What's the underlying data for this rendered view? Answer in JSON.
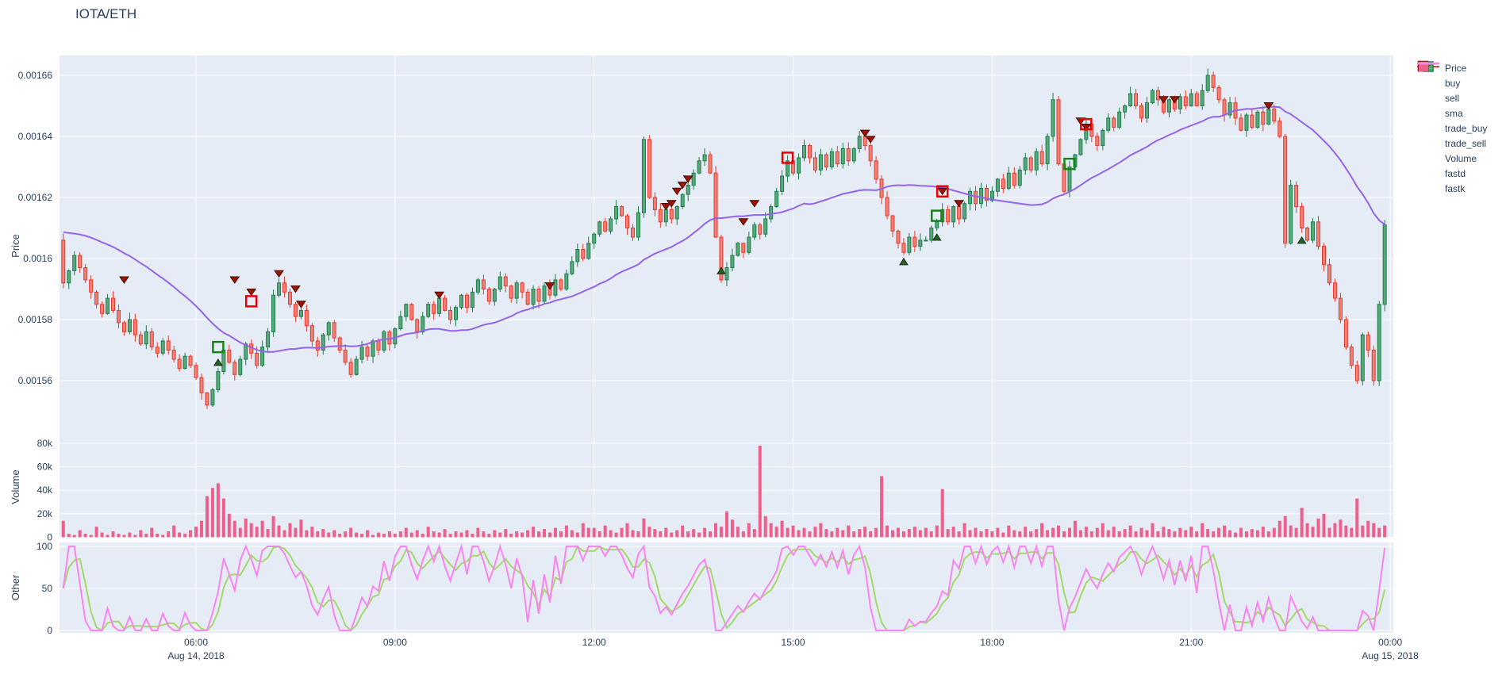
{
  "title": "IOTA/ETH",
  "legend": [
    {
      "label": "Price",
      "icon": "candlestick"
    },
    {
      "label": "buy",
      "icon": "triangle-up",
      "color": "#2a5f28"
    },
    {
      "label": "sell",
      "icon": "triangle-down",
      "color": "#9f1300"
    },
    {
      "label": "sma",
      "icon": "line",
      "color": "#9464e8"
    },
    {
      "label": "trade_buy",
      "icon": "square-open",
      "color": "#168716"
    },
    {
      "label": "trade_sell",
      "icon": "square-open",
      "color": "#e60000"
    },
    {
      "label": "Volume",
      "icon": "square-fill",
      "color": "#ee5f8b"
    },
    {
      "label": "fastd",
      "icon": "line",
      "color": "#a5d76a"
    },
    {
      "label": "fastk",
      "icon": "line",
      "color": "#f884f0"
    }
  ],
  "axes": {
    "price": {
      "label": "Price",
      "ticks": [
        {
          "t": "0.00166",
          "v": 1660
        },
        {
          "t": "0.00164",
          "v": 1640
        },
        {
          "t": "0.00162",
          "v": 1620
        },
        {
          "t": "0.0016",
          "v": 1600
        },
        {
          "t": "0.00158",
          "v": 1580
        },
        {
          "t": "0.00156",
          "v": 1560
        }
      ]
    },
    "volume": {
      "label": "Volume",
      "ticks": [
        {
          "t": "80k",
          "v": 80
        },
        {
          "t": "60k",
          "v": 60
        },
        {
          "t": "40k",
          "v": 40
        },
        {
          "t": "20k",
          "v": 20
        },
        {
          "t": "0",
          "v": 0
        }
      ]
    },
    "other": {
      "label": "Other",
      "ticks": [
        {
          "t": "100",
          "v": 100
        },
        {
          "t": "50",
          "v": 50
        },
        {
          "t": "0",
          "v": 0
        }
      ]
    },
    "x": {
      "ticks": [
        {
          "label": "06:00",
          "i": 24
        },
        {
          "label": "09:00",
          "i": 60
        },
        {
          "label": "12:00",
          "i": 96
        },
        {
          "label": "15:00",
          "i": 132
        },
        {
          "label": "18:00",
          "i": 168
        },
        {
          "label": "21:00",
          "i": 204
        },
        {
          "label": "00:00",
          "i": 240
        }
      ],
      "dates": [
        {
          "label": "Aug 14, 2018",
          "i": 24
        },
        {
          "label": "Aug 15, 2018",
          "i": 240
        }
      ]
    }
  },
  "chart_data": {
    "type": "candlestick",
    "pair": "IOTA/ETH",
    "start": "2018-08-14 04:00",
    "interval_minutes": 5,
    "price_unit": 1e-06,
    "first_open": 1606,
    "closes": [
      1592,
      1596,
      1601,
      1597,
      1593,
      1589,
      1585,
      1582,
      1587,
      1583,
      1579,
      1576,
      1580,
      1575,
      1572,
      1576,
      1571,
      1569,
      1573,
      1570,
      1567,
      1564,
      1568,
      1565,
      1561,
      1556,
      1552,
      1557,
      1563,
      1570,
      1566,
      1562,
      1567,
      1572,
      1569,
      1565,
      1571,
      1576,
      1588,
      1592,
      1589,
      1585,
      1581,
      1583,
      1578,
      1573,
      1570,
      1575,
      1579,
      1574,
      1570,
      1566,
      1562,
      1567,
      1571,
      1568,
      1573,
      1570,
      1576,
      1572,
      1577,
      1581,
      1585,
      1580,
      1576,
      1581,
      1585,
      1582,
      1587,
      1583,
      1580,
      1584,
      1588,
      1584,
      1589,
      1593,
      1590,
      1586,
      1590,
      1594,
      1591,
      1587,
      1592,
      1589,
      1585,
      1590,
      1586,
      1591,
      1588,
      1593,
      1590,
      1595,
      1599,
      1603,
      1600,
      1605,
      1608,
      1612,
      1609,
      1613,
      1617,
      1614,
      1610,
      1607,
      1615,
      1639,
      1620,
      1616,
      1612,
      1616,
      1613,
      1617,
      1621,
      1624,
      1628,
      1632,
      1634,
      1628,
      1607,
      1593,
      1597,
      1601,
      1605,
      1602,
      1607,
      1611,
      1608,
      1613,
      1617,
      1622,
      1627,
      1632,
      1628,
      1633,
      1637,
      1633,
      1629,
      1634,
      1630,
      1635,
      1631,
      1636,
      1632,
      1636,
      1640,
      1637,
      1632,
      1626,
      1620,
      1614,
      1609,
      1605,
      1602,
      1607,
      1604,
      1606,
      1606,
      1610,
      1612,
      1616,
      1612,
      1617,
      1613,
      1618,
      1622,
      1618,
      1623,
      1619,
      1622,
      1626,
      1623,
      1628,
      1624,
      1629,
      1633,
      1629,
      1635,
      1631,
      1640,
      1652,
      1631,
      1622,
      1630,
      1634,
      1639,
      1644,
      1640,
      1637,
      1642,
      1646,
      1643,
      1648,
      1650,
      1654,
      1650,
      1646,
      1651,
      1655,
      1652,
      1648,
      1652,
      1649,
      1653,
      1650,
      1654,
      1650,
      1655,
      1660,
      1656,
      1652,
      1647,
      1651,
      1646,
      1642,
      1647,
      1643,
      1648,
      1644,
      1649,
      1645,
      1640,
      1605,
      1624,
      1617,
      1610,
      1606,
      1612,
      1604,
      1598,
      1592,
      1587,
      1580,
      1571,
      1565,
      1560,
      1575,
      1570,
      1560,
      1585,
      1611
    ],
    "volumes_k": [
      14,
      3,
      2,
      6,
      3,
      2,
      9,
      4,
      2,
      5,
      3,
      2,
      4,
      2,
      6,
      3,
      8,
      3,
      2,
      5,
      10,
      4,
      3,
      6,
      9,
      14,
      35,
      42,
      46,
      33,
      20,
      14,
      8,
      16,
      12,
      9,
      14,
      7,
      18,
      10,
      6,
      12,
      8,
      15,
      6,
      9,
      5,
      7,
      4,
      6,
      3,
      5,
      8,
      4,
      3,
      6,
      2,
      4,
      3,
      5,
      3,
      5,
      8,
      4,
      6,
      3,
      9,
      5,
      4,
      7,
      3,
      5,
      4,
      6,
      3,
      8,
      5,
      3,
      6,
      4,
      7,
      3,
      5,
      4,
      6,
      9,
      5,
      7,
      4,
      8,
      5,
      10,
      6,
      4,
      12,
      8,
      8,
      5,
      10,
      6,
      4,
      8,
      12,
      6,
      5,
      16,
      9,
      7,
      5,
      8,
      4,
      6,
      10,
      5,
      7,
      4,
      8,
      5,
      12,
      9,
      22,
      15,
      9,
      5,
      12,
      7,
      78,
      18,
      12,
      9,
      14,
      8,
      10,
      6,
      8,
      5,
      9,
      12,
      7,
      5,
      8,
      6,
      10,
      5,
      7,
      9,
      5,
      8,
      52,
      10,
      6,
      8,
      5,
      7,
      9,
      6,
      8,
      5,
      10,
      41,
      7,
      9,
      5,
      12,
      6,
      8,
      5,
      7,
      5,
      8,
      4,
      10,
      6,
      5,
      9,
      5,
      7,
      12,
      6,
      8,
      10,
      5,
      8,
      14,
      6,
      9,
      5,
      8,
      12,
      6,
      9,
      5,
      7,
      10,
      5,
      8,
      6,
      12,
      5,
      9,
      7,
      5,
      8,
      6,
      9,
      5,
      12,
      7,
      5,
      8,
      10,
      6,
      4,
      8,
      5,
      7,
      6,
      9,
      5,
      8,
      14,
      18,
      10,
      8,
      25,
      12,
      9,
      16,
      20,
      8,
      12,
      15,
      10,
      8,
      33,
      10,
      14,
      12,
      8,
      10
    ],
    "sma_period": 30,
    "stochastic": {
      "fastk_period": 14,
      "fastd_period": 3
    },
    "markers": {
      "buy": [
        [
          28,
          1566
        ],
        [
          119,
          1596
        ],
        [
          152,
          1599
        ],
        [
          158,
          1607
        ],
        [
          224,
          1606
        ]
      ],
      "sell": [
        [
          11,
          1593
        ],
        [
          31,
          1593
        ],
        [
          34,
          1589
        ],
        [
          39,
          1595
        ],
        [
          42,
          1590
        ],
        [
          43,
          1585
        ],
        [
          68,
          1588
        ],
        [
          88,
          1591
        ],
        [
          109,
          1617
        ],
        [
          110,
          1618
        ],
        [
          111,
          1622
        ],
        [
          112,
          1624
        ],
        [
          113,
          1626
        ],
        [
          123,
          1612
        ],
        [
          125,
          1618
        ],
        [
          145,
          1641
        ],
        [
          146,
          1639
        ],
        [
          159,
          1622
        ],
        [
          162,
          1618
        ],
        [
          184,
          1645
        ],
        [
          185,
          1643
        ],
        [
          199,
          1652
        ],
        [
          201,
          1652
        ],
        [
          218,
          1650
        ]
      ],
      "trade_buy": [
        [
          28,
          1571
        ],
        [
          158,
          1614
        ],
        [
          182,
          1631
        ]
      ],
      "trade_sell": [
        [
          34,
          1586
        ],
        [
          131,
          1633
        ],
        [
          159,
          1622
        ],
        [
          185,
          1644
        ]
      ]
    },
    "colors": {
      "plot_bg": "#e5ecf6",
      "grid": "#ffffff",
      "text": "#2a3f5f",
      "candle_up_line": "#1f7d4a",
      "candle_up_fill": "#57a97c",
      "candle_down_line": "#e53a2e",
      "candle_down_fill": "#f08176",
      "sma": "#9464e8",
      "volume": "#ee5f8b",
      "fastd": "#a5d76a",
      "fastk": "#f884f0",
      "buy_marker": "#2a5f28",
      "sell_marker": "#9f1300",
      "trade_buy": "#168716",
      "trade_sell": "#e60000"
    }
  }
}
